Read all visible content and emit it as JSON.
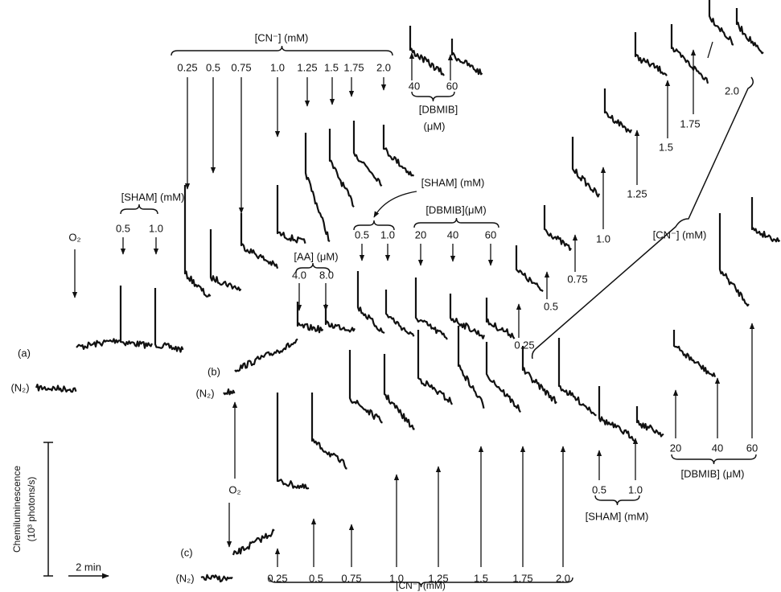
{
  "trace_a": {
    "label": "(a)",
    "baseline": "(N₂)",
    "oxygen": "O₂",
    "sham": {
      "title": "[SHAM] (mM)",
      "doses": [
        "0.5",
        "1.0"
      ]
    },
    "cn": {
      "title": "[CN⁻] (mM)",
      "doses": [
        "0.25",
        "0.5",
        "0.75",
        "1.0",
        "1.25",
        "1.5",
        "1.75",
        "2.0"
      ]
    },
    "dbmib": {
      "title": "[DBMIB]",
      "unit": "(μM)",
      "doses": [
        "40",
        "60"
      ]
    }
  },
  "trace_b": {
    "label": "(b)",
    "baseline": "(N₂)",
    "aa": {
      "title": "[AA] (μM)",
      "doses": [
        "4.0",
        "8.0"
      ]
    },
    "sham": {
      "title": "[SHAM] (mM)",
      "doses": [
        "0.5",
        "1.0"
      ]
    },
    "dbmib": {
      "title": "[DBMIB](μM)",
      "doses": [
        "20",
        "40",
        "60"
      ]
    },
    "cn": {
      "title": "[CN⁻] (mM)",
      "doses": [
        "0.25",
        "0.5",
        "0.75",
        "1.0",
        "1.25",
        "1.5",
        "1.75",
        "2.0"
      ]
    }
  },
  "trace_c": {
    "label": "(c)",
    "baseline": "(N₂)",
    "oxygen": "O₂",
    "cn": {
      "title": "[CN⁻] (mM)",
      "doses": [
        "0.25",
        "0.5",
        "0.75",
        "1.0",
        "1.25",
        "1.5",
        "1.75",
        "2.0"
      ]
    },
    "sham": {
      "title": "[SHAM] (mM)",
      "doses": [
        "0.5",
        "1.0"
      ]
    },
    "dbmib": {
      "title": "[DBMIB] (μM)",
      "doses": [
        "20",
        "40",
        "60"
      ]
    }
  },
  "scale": {
    "y_label": "Chemiluminescence",
    "y_unit": "(10³ photons/s)",
    "time": "2 min"
  }
}
